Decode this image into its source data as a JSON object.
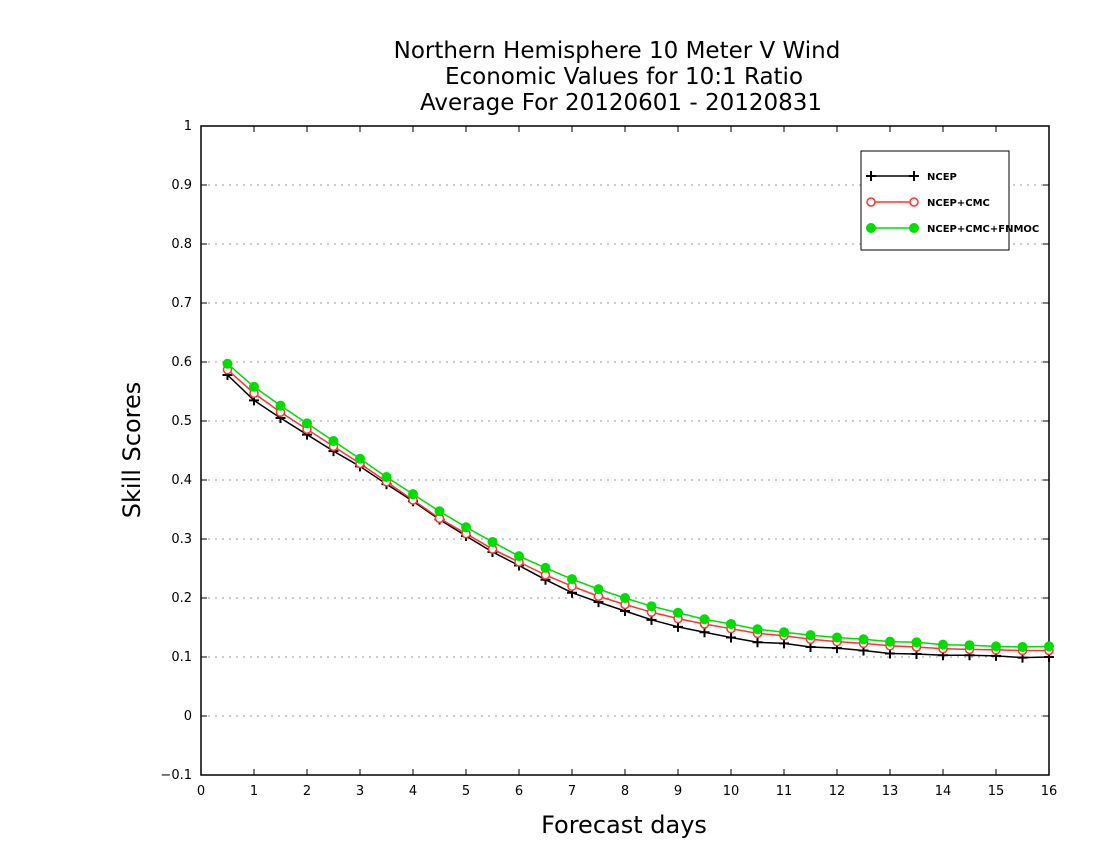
{
  "chart_data": {
    "type": "line",
    "title_lines": [
      "Northern Hemisphere 10 Meter V Wind",
      "Economic Values for 10:1 Ratio",
      "Average For 20120601 - 20120831"
    ],
    "xlabel": "Forecast days",
    "ylabel": "Skill Scores",
    "xlim": [
      0,
      16
    ],
    "ylim": [
      -0.1,
      1
    ],
    "xticks": [
      "0",
      "1",
      "2",
      "3",
      "4",
      "5",
      "6",
      "7",
      "8",
      "9",
      "10",
      "11",
      "12",
      "13",
      "14",
      "15",
      "16"
    ],
    "yticks": [
      "−0.1",
      "0",
      "0.1",
      "0.2",
      "0.3",
      "0.4",
      "0.5",
      "0.6",
      "0.7",
      "0.8",
      "0.9",
      "1"
    ],
    "grid": "horizontal dotted",
    "legend_position": "top-right",
    "x": [
      0.5,
      1,
      1.5,
      2,
      2.5,
      3,
      3.5,
      4,
      4.5,
      5,
      5.5,
      6,
      6.5,
      7,
      7.5,
      8,
      8.5,
      9,
      9.5,
      10,
      10.5,
      11,
      11.5,
      12,
      12.5,
      13,
      13.5,
      14,
      14.5,
      15,
      15.5,
      16
    ],
    "series": [
      {
        "name": "NCEP",
        "color": "#000000",
        "marker": "plus",
        "values": [
          0.578,
          0.535,
          0.505,
          0.477,
          0.449,
          0.423,
          0.393,
          0.364,
          0.333,
          0.305,
          0.278,
          0.255,
          0.231,
          0.209,
          0.193,
          0.178,
          0.163,
          0.151,
          0.142,
          0.133,
          0.125,
          0.123,
          0.117,
          0.115,
          0.111,
          0.106,
          0.105,
          0.103,
          0.103,
          0.102,
          0.099,
          0.1
        ]
      },
      {
        "name": "NCEP+CMC",
        "color": "#ff3333",
        "marker": "open-circle",
        "values": [
          0.587,
          0.547,
          0.515,
          0.486,
          0.457,
          0.428,
          0.397,
          0.366,
          0.335,
          0.309,
          0.283,
          0.261,
          0.239,
          0.22,
          0.203,
          0.189,
          0.176,
          0.165,
          0.156,
          0.148,
          0.14,
          0.136,
          0.13,
          0.126,
          0.123,
          0.119,
          0.117,
          0.114,
          0.113,
          0.112,
          0.111,
          0.111
        ]
      },
      {
        "name": "NCEP+CMC+FNMOC",
        "color": "#00dd00",
        "marker": "filled-circle",
        "values": [
          0.597,
          0.558,
          0.526,
          0.496,
          0.466,
          0.436,
          0.405,
          0.376,
          0.347,
          0.32,
          0.295,
          0.271,
          0.251,
          0.232,
          0.215,
          0.2,
          0.186,
          0.175,
          0.164,
          0.156,
          0.147,
          0.142,
          0.137,
          0.133,
          0.13,
          0.126,
          0.125,
          0.121,
          0.12,
          0.118,
          0.117,
          0.118
        ]
      }
    ]
  }
}
